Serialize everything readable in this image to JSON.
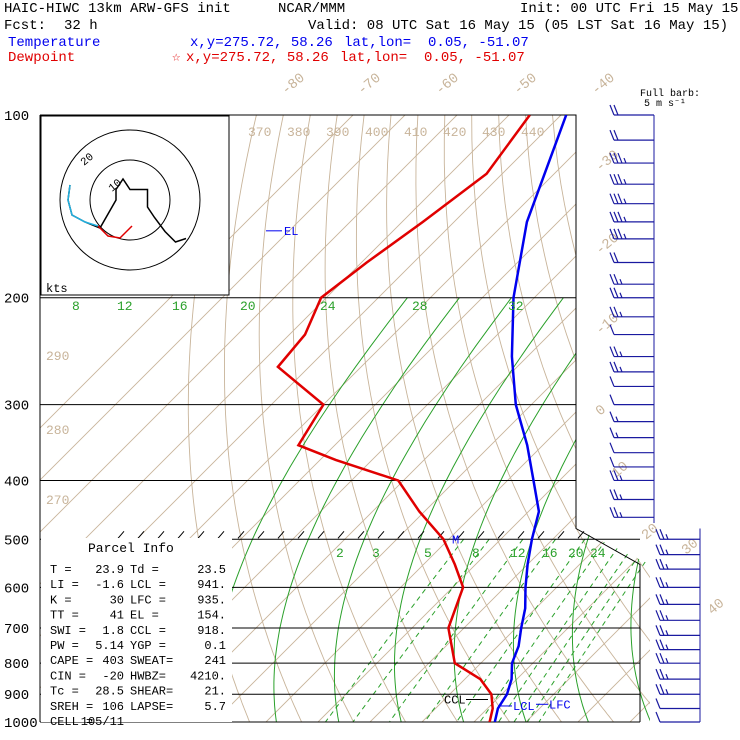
{
  "header": {
    "model": "HAIC-HIWC 13km ARW-GFS init",
    "center": "NCAR/MMM",
    "init": "Init: 00 UTC Fri 15 May 15",
    "fcst_label": "Fcst:",
    "fcst_value": "32 h",
    "valid": "Valid: 08 UTC Sat 16 May 15 (05 LST Sat 16 May 15)"
  },
  "legend": {
    "temp_label": "Temperature",
    "temp_xy": "x,y=275.72, 58.26",
    "temp_latlon": "lat,lon=  0.05, -51.07",
    "dew_label": "Dewpoint",
    "dew_xy": "x,y=275.72, 58.26",
    "dew_latlon": "lat,lon=  0.05, -51.07",
    "dew_marker": "☆"
  },
  "barbs": {
    "title": "Full barb:",
    "units": "5 m s⁻¹"
  },
  "hodograph": {
    "units": "kts",
    "ring_labels": [
      "10",
      "20"
    ]
  },
  "parcel": {
    "title": "Parcel Info",
    "rows": [
      [
        "T  =",
        "23.9",
        "Td =",
        "23.5"
      ],
      [
        "LI =",
        "-1.6",
        "LCL =",
        "941."
      ],
      [
        "K  =",
        "30",
        "LFC =",
        "935."
      ],
      [
        "TT =",
        "41",
        "EL =",
        "154."
      ],
      [
        "SWI =",
        "1.8",
        "CCL =",
        "918."
      ],
      [
        "PW =",
        "5.14",
        "YGP =",
        "0.1"
      ],
      [
        "CAPE =",
        "403",
        "SWEAT=",
        "241"
      ],
      [
        "CIN =",
        "-20",
        "HWBZ=",
        "4210."
      ],
      [
        "Tc =",
        "28.5",
        "SHEAR=",
        "21."
      ],
      [
        "SREH =",
        "106",
        "LAPSE=",
        "5.7"
      ],
      [
        "CELL =",
        "105/11",
        "",
        ""
      ]
    ]
  },
  "colors": {
    "temperature": "#0000ee",
    "dewpoint": "#e00000",
    "isotherm": "#c8b49a",
    "mixing_ratio": "#2aa02a",
    "barb": "#1a1aa0"
  },
  "chart_data": {
    "type": "skew-t",
    "pressure_levels": [
      100,
      200,
      300,
      400,
      500,
      600,
      700,
      800,
      900,
      1000
    ],
    "isotherm_labels": [
      "-80",
      "-70",
      "-60",
      "-50",
      "-40",
      "-30",
      "-20",
      "-10",
      "0",
      "10",
      "20",
      "30",
      "40"
    ],
    "theta_labels": [
      "370",
      "380",
      "390",
      "400",
      "410",
      "420",
      "430",
      "440"
    ],
    "theta_left_labels": [
      "290",
      "280",
      "270"
    ],
    "mixing_ratio_labels_upper": [
      "8",
      "12",
      "16",
      "20",
      "24",
      "28",
      "32"
    ],
    "mixing_ratio_labels_lower": [
      "2",
      "3",
      "5",
      "8",
      "12",
      "16",
      "20",
      "24"
    ],
    "markers": {
      "el": "EL",
      "ccl": "CCL",
      "lcl": "LCL",
      "lfc": "LFC",
      "m": "M"
    },
    "series": [
      {
        "name": "Temperature",
        "points": [
          [
            100,
            -79
          ],
          [
            150,
            -66
          ],
          [
            200,
            -54
          ],
          [
            250,
            -43
          ],
          [
            300,
            -33
          ],
          [
            350,
            -23
          ],
          [
            400,
            -15
          ],
          [
            450,
            -8
          ],
          [
            500,
            -4
          ],
          [
            550,
            0
          ],
          [
            600,
            4
          ],
          [
            650,
            8
          ],
          [
            700,
            11
          ],
          [
            750,
            14
          ],
          [
            800,
            16
          ],
          [
            850,
            19
          ],
          [
            900,
            21
          ],
          [
            950,
            22
          ],
          [
            1000,
            24
          ]
        ]
      },
      {
        "name": "Dewpoint",
        "points": [
          [
            100,
            -86
          ],
          [
            125,
            -83
          ],
          [
            150,
            -86
          ],
          [
            175,
            -89
          ],
          [
            200,
            -91
          ],
          [
            230,
            -87
          ],
          [
            260,
            -86
          ],
          [
            300,
            -70
          ],
          [
            350,
            -67
          ],
          [
            370,
            -57
          ],
          [
            400,
            -41
          ],
          [
            450,
            -31
          ],
          [
            500,
            -21
          ],
          [
            550,
            -14
          ],
          [
            600,
            -8
          ],
          [
            700,
            -3
          ],
          [
            800,
            5
          ],
          [
            850,
            13
          ],
          [
            900,
            18
          ],
          [
            950,
            21
          ],
          [
            1000,
            23
          ]
        ]
      }
    ],
    "winds": [
      {
        "p": 100,
        "speed_kt": 20
      },
      {
        "p": 110,
        "speed_kt": 20
      },
      {
        "p": 120,
        "speed_kt": 25
      },
      {
        "p": 130,
        "speed_kt": 25
      },
      {
        "p": 140,
        "speed_kt": 25
      },
      {
        "p": 150,
        "speed_kt": 25
      },
      {
        "p": 160,
        "speed_kt": 25
      },
      {
        "p": 175,
        "speed_kt": 20
      },
      {
        "p": 190,
        "speed_kt": 15
      },
      {
        "p": 200,
        "speed_kt": 15
      },
      {
        "p": 215,
        "speed_kt": 15
      },
      {
        "p": 230,
        "speed_kt": 10
      },
      {
        "p": 250,
        "speed_kt": 15
      },
      {
        "p": 265,
        "speed_kt": 15
      },
      {
        "p": 280,
        "speed_kt": 10
      },
      {
        "p": 300,
        "speed_kt": 10
      },
      {
        "p": 320,
        "speed_kt": 5
      },
      {
        "p": 340,
        "speed_kt": 5
      },
      {
        "p": 360,
        "speed_kt": 10
      },
      {
        "p": 380,
        "speed_kt": 10
      },
      {
        "p": 400,
        "speed_kt": 15
      },
      {
        "p": 430,
        "speed_kt": 15
      },
      {
        "p": 460,
        "speed_kt": 15
      },
      {
        "p": 500,
        "speed_kt": 15
      },
      {
        "p": 530,
        "speed_kt": 15
      },
      {
        "p": 560,
        "speed_kt": 15
      },
      {
        "p": 600,
        "speed_kt": 15
      },
      {
        "p": 640,
        "speed_kt": 15
      },
      {
        "p": 680,
        "speed_kt": 15
      },
      {
        "p": 720,
        "speed_kt": 15
      },
      {
        "p": 760,
        "speed_kt": 15
      },
      {
        "p": 800,
        "speed_kt": 15
      },
      {
        "p": 850,
        "speed_kt": 15
      },
      {
        "p": 900,
        "speed_kt": 15
      },
      {
        "p": 950,
        "speed_kt": 10
      },
      {
        "p": 1000,
        "speed_kt": 10
      }
    ],
    "hodograph_path": [
      [
        -8,
        0
      ],
      [
        -4,
        0
      ],
      [
        -4,
        -3
      ],
      [
        -2,
        -6
      ],
      [
        0,
        -3
      ],
      [
        5,
        -3
      ],
      [
        5,
        2
      ],
      [
        7,
        5
      ],
      [
        10,
        9
      ],
      [
        13,
        12
      ],
      [
        16,
        11
      ]
    ],
    "hodograph_red": [
      [
        -2,
        -8
      ],
      [
        -4,
        -10
      ],
      [
        -5,
        -12
      ],
      [
        -3,
        -15
      ],
      [
        -1,
        -12
      ]
    ]
  }
}
